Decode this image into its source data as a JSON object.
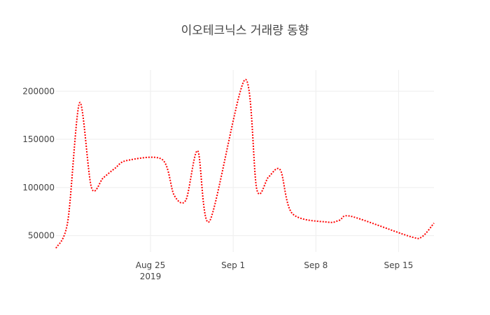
{
  "colors": {
    "line": "#ff0000",
    "grid": "#eeeeee",
    "text": "#444444",
    "background": "#ffffff"
  },
  "chart_data": {
    "type": "line",
    "title": "이오테크닉스 거래량 동향",
    "xlabel": "",
    "ylabel": "",
    "x_axis": {
      "type": "date",
      "range": [
        "2019-08-17",
        "2019-09-18"
      ],
      "ticks": [
        {
          "value": "2019-08-25",
          "label": "Aug 25",
          "sublabel": "2019"
        },
        {
          "value": "2019-09-01",
          "label": "Sep 1",
          "sublabel": ""
        },
        {
          "value": "2019-09-08",
          "label": "Sep 8",
          "sublabel": ""
        },
        {
          "value": "2019-09-15",
          "label": "Sep 15",
          "sublabel": ""
        }
      ]
    },
    "y_axis": {
      "range": [
        33000,
        222000
      ],
      "ticks": [
        50000,
        100000,
        150000,
        200000
      ]
    },
    "grid": true,
    "legend": "none",
    "line_style": "dotted",
    "line_shape": "spline",
    "series": [
      {
        "x": [
          "2019-08-17",
          "2019-08-18",
          "2019-08-19",
          "2019-08-20",
          "2019-08-21",
          "2019-08-22",
          "2019-08-23",
          "2019-08-26",
          "2019-08-27",
          "2019-08-28",
          "2019-08-29",
          "2019-08-30",
          "2019-09-02",
          "2019-09-03",
          "2019-09-04",
          "2019-09-05",
          "2019-09-06",
          "2019-09-09",
          "2019-09-10",
          "2019-09-11",
          "2019-09-16",
          "2019-09-17",
          "2019-09-18"
        ],
        "values": [
          37000,
          65000,
          188000,
          100000,
          110000,
          120000,
          128000,
          129000,
          92000,
          87000,
          138000,
          65000,
          212000,
          98000,
          111000,
          118000,
          73000,
          64000,
          66000,
          70000,
          49000,
          49000,
          63000
        ]
      }
    ]
  }
}
